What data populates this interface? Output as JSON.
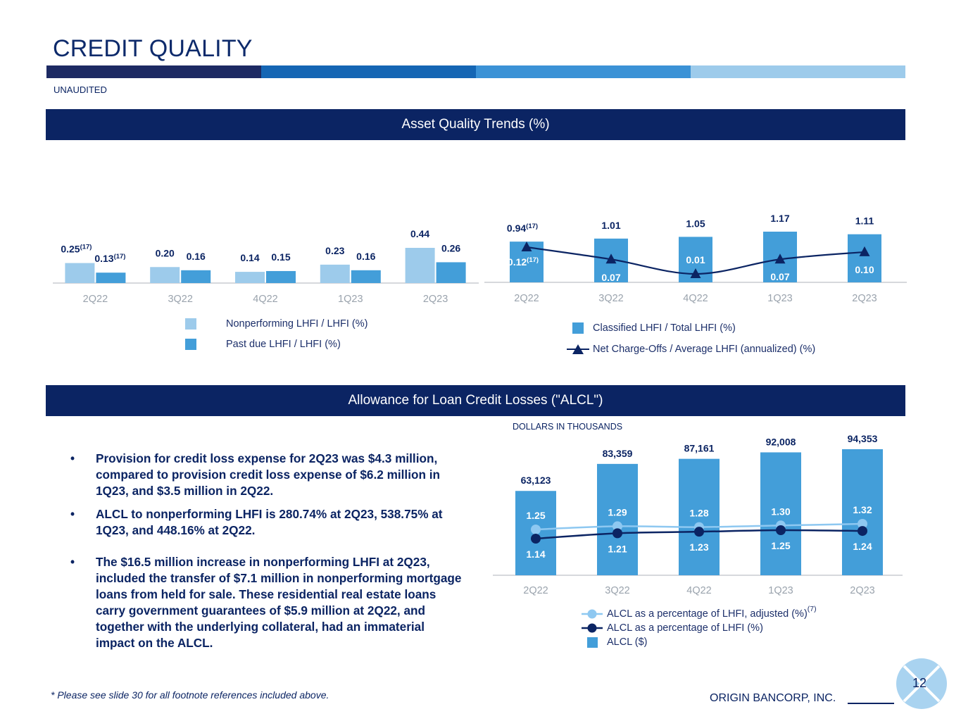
{
  "header": {
    "title": "CREDIT QUALITY",
    "subtitle": "UNAUDITED",
    "stripe_colors": [
      "#1d2a63",
      "#1566b4",
      "#3b92d6",
      "#9dcbeb"
    ]
  },
  "sections": {
    "asset_quality": "Asset Quality Trends (%)",
    "alcl": "Allowance for Loan Credit Losses (\"ALCL\")"
  },
  "colors": {
    "navy": "#0b2463",
    "light_blue": "#9dcbeb",
    "mid_blue": "#439ed9",
    "line_light": "#8ec8f1",
    "axis_label": "#9aa3ad"
  },
  "chart_data": [
    {
      "id": "nonperforming",
      "type": "bar",
      "categories": [
        "2Q22",
        "3Q22",
        "4Q22",
        "1Q23",
        "2Q23"
      ],
      "series": [
        {
          "name": "Nonperforming LHFI / LHFI (%)",
          "values": [
            0.25,
            0.2,
            0.14,
            0.23,
            0.44
          ],
          "labels": [
            "0.25",
            "0.20",
            "0.14",
            "0.23",
            "0.44"
          ],
          "footnotes": [
            "(17)",
            "",
            "",
            "",
            ""
          ]
        },
        {
          "name": "Past due LHFI / LHFI (%)",
          "values": [
            0.13,
            0.16,
            0.15,
            0.16,
            0.26
          ],
          "labels": [
            "0.13",
            "0.16",
            "0.15",
            "0.16",
            "0.26"
          ],
          "footnotes": [
            "(17)",
            "",
            "",
            "",
            ""
          ]
        }
      ],
      "ylim": [
        0,
        0.44
      ]
    },
    {
      "id": "classified",
      "type": "bar+line",
      "categories": [
        "2Q22",
        "3Q22",
        "4Q22",
        "1Q23",
        "2Q23"
      ],
      "bars": {
        "name": "Classified LHFI / Total LHFI (%)",
        "values": [
          0.94,
          1.01,
          1.05,
          1.17,
          1.11
        ],
        "labels": [
          "0.94",
          "1.01",
          "1.05",
          "1.17",
          "1.11"
        ],
        "footnotes": [
          "(17)",
          "",
          "",
          "",
          ""
        ]
      },
      "line": {
        "name": "Net Charge-Offs / Average LHFI (annualized) (%)",
        "values": [
          0.12,
          0.07,
          0.01,
          0.07,
          0.1
        ],
        "labels": [
          "0.12",
          "0.07",
          "0.01",
          "0.07",
          "0.10"
        ],
        "footnotes": [
          "(17)",
          "",
          "",
          "",
          ""
        ]
      },
      "bar_ylim": [
        0,
        1.17
      ],
      "line_ylim": [
        0,
        0.12
      ]
    },
    {
      "id": "alcl",
      "type": "bar+line",
      "unit_note": "DOLLARS IN THOUSANDS",
      "categories": [
        "2Q22",
        "3Q22",
        "4Q22",
        "1Q23",
        "2Q23"
      ],
      "bars": {
        "name": "ALCL ($)",
        "values": [
          63123,
          83359,
          87161,
          92008,
          94353
        ],
        "labels": [
          "63,123",
          "83,359",
          "87,161",
          "92,008",
          "94,353"
        ]
      },
      "series": [
        {
          "name": "ALCL as a percentage of LHFI, adjusted (%)",
          "footnote": "(7)",
          "values": [
            1.25,
            1.29,
            1.28,
            1.3,
            1.32
          ],
          "labels": [
            "1.25",
            "1.29",
            "1.28",
            "1.30",
            "1.32"
          ]
        },
        {
          "name": "ALCL as a percentage of LHFI (%)",
          "values": [
            1.14,
            1.21,
            1.23,
            1.25,
            1.24
          ],
          "labels": [
            "1.14",
            "1.21",
            "1.23",
            "1.25",
            "1.24"
          ]
        }
      ],
      "bar_ylim": [
        0,
        94353
      ]
    }
  ],
  "bullets": [
    "Provision for credit loss expense for 2Q23 was $4.3 million, compared to provision credit loss expense of $6.2 million in 1Q23, and $3.5 million in 2Q22.",
    "ALCL to nonperforming LHFI is 280.74% at 2Q23, 538.75% at 1Q23, and 448.16% at 2Q22.",
    "The $16.5 million increase in nonperforming LHFI at 2Q23, included the transfer of $7.1 million in nonperforming mortgage loans from held for sale. These residential real estate loans carry government guarantees of $5.9 million at 2Q22, and together with the underlying collateral, had an immaterial impact on the ALCL."
  ],
  "bullet_marker": "•",
  "footer": {
    "footnote": "* Please see slide 30 for all footnote references included above.",
    "company": "ORIGIN BANCORP, INC.",
    "page_number": "12"
  }
}
